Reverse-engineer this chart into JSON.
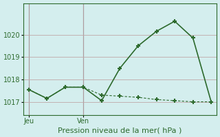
{
  "line1_x": [
    0,
    1,
    2,
    3,
    4,
    5,
    6,
    7,
    8,
    9,
    10
  ],
  "line1_y": [
    1017.55,
    1017.15,
    1017.65,
    1017.65,
    1017.05,
    1018.5,
    1019.5,
    1020.15,
    1020.6,
    1019.85,
    1017.0
  ],
  "line2_x": [
    0,
    1,
    2,
    3,
    4,
    5,
    6,
    7,
    8,
    9,
    10
  ],
  "line2_y": [
    1017.55,
    1017.15,
    1017.65,
    1017.65,
    1017.3,
    1017.25,
    1017.2,
    1017.1,
    1017.05,
    1017.0,
    1017.0
  ],
  "line_color": "#2d6a2d",
  "bg_color": "#d4eeee",
  "grid_color": "#c0a8a8",
  "xlabel_text": "Pression niveau de la mer( hPa )",
  "yticks": [
    1017,
    1018,
    1019,
    1020
  ],
  "ylim": [
    1016.4,
    1021.4
  ],
  "xlim": [
    -0.3,
    10.3
  ],
  "jeu_x": 0,
  "ven_x": 3,
  "jeu_label": "Jeu",
  "ven_label": "Ven",
  "marker": "+",
  "markersize": 5,
  "markeredgewidth": 1.5,
  "linewidth": 1.2,
  "linewidth2": 0.8,
  "xlabel_fontsize": 8,
  "tick_fontsize": 7,
  "vline_color": "#5a5a6a"
}
